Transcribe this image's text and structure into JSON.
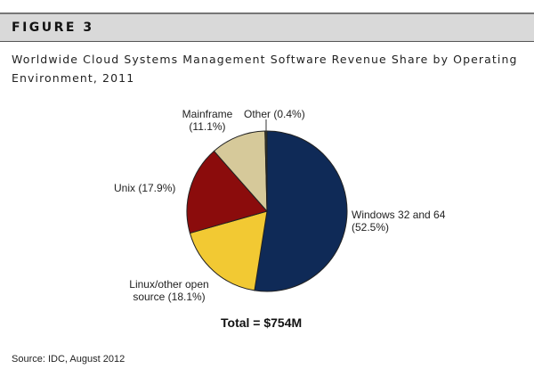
{
  "figure_label": "FIGURE 3",
  "chart_data": {
    "type": "pie",
    "title": "Worldwide Cloud Systems Management Software Revenue Share by Operating Environment, 2011",
    "slices": [
      {
        "name": "Windows 32 and 64",
        "value": 52.5,
        "label": "Windows 32 and 64 (52.5%)",
        "color": "#0f2a57"
      },
      {
        "name": "Linux/other open source",
        "value": 18.1,
        "label": "Linux/other open source (18.1%)",
        "color": "#f2c933"
      },
      {
        "name": "Unix",
        "value": 17.9,
        "label": "Unix (17.9%)",
        "color": "#8b0c0c"
      },
      {
        "name": "Mainframe",
        "value": 11.1,
        "label": "Mainframe (11.1%)",
        "color": "#d6c99a"
      },
      {
        "name": "Other",
        "value": 0.4,
        "label": "Other (0.4%)",
        "color": "#3a3a2a"
      }
    ],
    "total": "Total = $754M"
  },
  "source": "Source: IDC, August 2012"
}
